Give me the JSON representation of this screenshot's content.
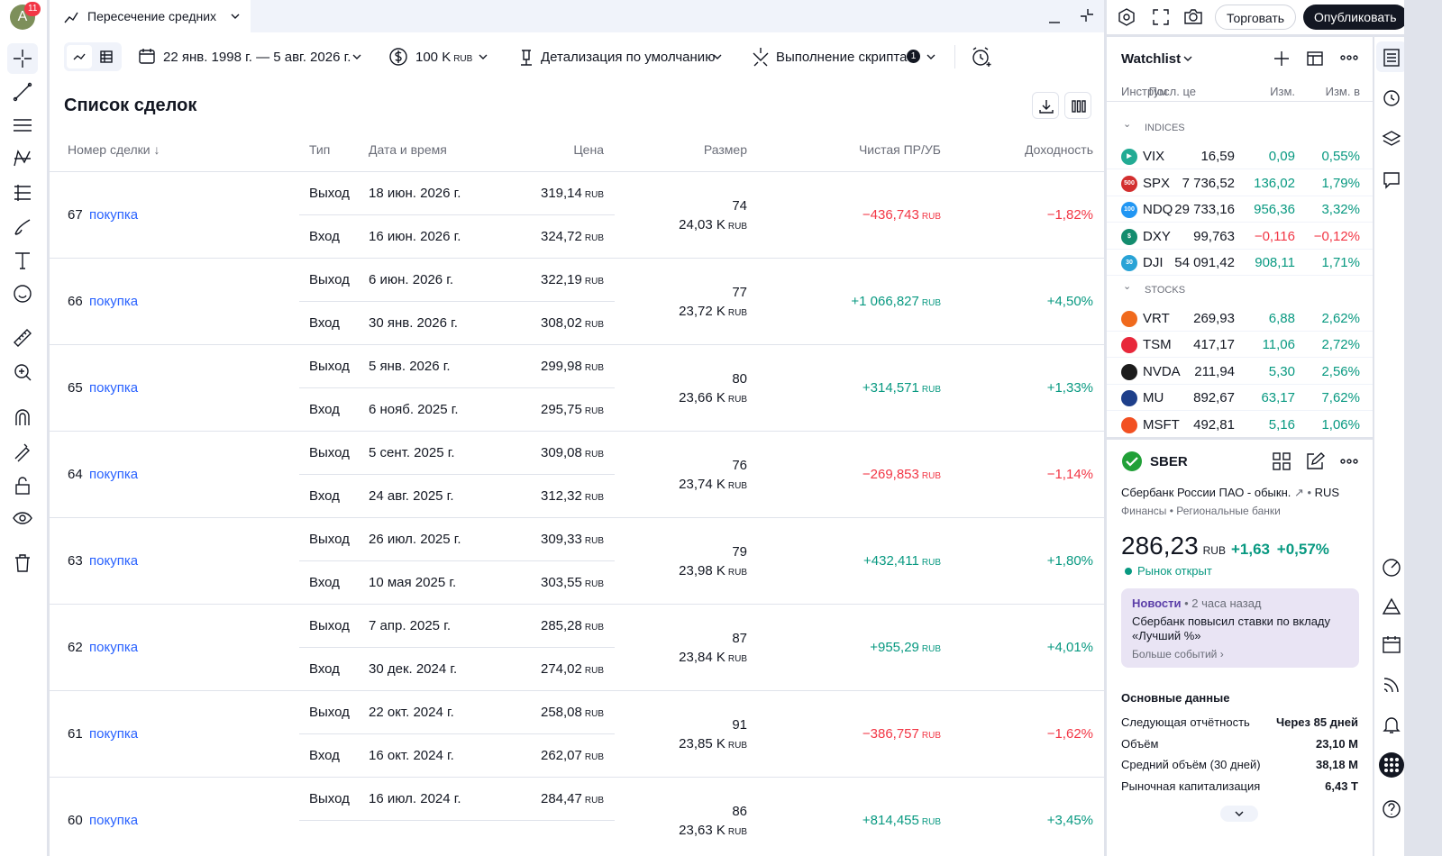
{
  "app": {
    "avatar": "A",
    "avatar_badge": "11",
    "tab_title": "Пересечение средних",
    "trade_button": "Торговать",
    "publish_button": "Опубликовать"
  },
  "toolbar": {
    "date_range": "22 янв. 1998 г. — 5 авг. 2026 г.",
    "capital": "100 K",
    "capital_currency": "RUB",
    "detail": "Детализация по умолчанию",
    "script": "Выполнение скрипта",
    "script_badge": "1"
  },
  "table": {
    "title": "Список сделок",
    "currency": "RUB",
    "columns": [
      "Номер сделки ↓",
      "Тип",
      "Дата и время",
      "Цена",
      "Размер",
      "Чистая ПР/УБ",
      "Доходность"
    ],
    "trades": [
      {
        "num": "67",
        "side": "покупка",
        "exit": {
          "type": "Выход",
          "date": "18 июн. 2026 г.",
          "price": "319,14"
        },
        "entry": {
          "type": "Вход",
          "date": "16 июн. 2026 г.",
          "price": "324,72"
        },
        "qty": "74",
        "size": "24,03 K",
        "pnl": "−436,743",
        "ret": "−1,82%"
      },
      {
        "num": "66",
        "side": "покупка",
        "exit": {
          "type": "Выход",
          "date": "6 июн. 2026 г.",
          "price": "322,19"
        },
        "entry": {
          "type": "Вход",
          "date": "30 янв. 2026 г.",
          "price": "308,02"
        },
        "qty": "77",
        "size": "23,72 K",
        "pnl": "+1 066,827",
        "ret": "+4,50%"
      },
      {
        "num": "65",
        "side": "покупка",
        "exit": {
          "type": "Выход",
          "date": "5 янв. 2026 г.",
          "price": "299,98"
        },
        "entry": {
          "type": "Вход",
          "date": "6 нояб. 2025 г.",
          "price": "295,75"
        },
        "qty": "80",
        "size": "23,66 K",
        "pnl": "+314,571",
        "ret": "+1,33%"
      },
      {
        "num": "64",
        "side": "покупка",
        "exit": {
          "type": "Выход",
          "date": "5 сент. 2025 г.",
          "price": "309,08"
        },
        "entry": {
          "type": "Вход",
          "date": "24 авг. 2025 г.",
          "price": "312,32"
        },
        "qty": "76",
        "size": "23,74 K",
        "pnl": "−269,853",
        "ret": "−1,14%"
      },
      {
        "num": "63",
        "side": "покупка",
        "exit": {
          "type": "Выход",
          "date": "26 июл. 2025 г.",
          "price": "309,33"
        },
        "entry": {
          "type": "Вход",
          "date": "10 мая 2025 г.",
          "price": "303,55"
        },
        "qty": "79",
        "size": "23,98 K",
        "pnl": "+432,411",
        "ret": "+1,80%"
      },
      {
        "num": "62",
        "side": "покупка",
        "exit": {
          "type": "Выход",
          "date": "7 апр. 2025 г.",
          "price": "285,28"
        },
        "entry": {
          "type": "Вход",
          "date": "30 дек. 2024 г.",
          "price": "274,02"
        },
        "qty": "87",
        "size": "23,84 K",
        "pnl": "+955,29",
        "ret": "+4,01%"
      },
      {
        "num": "61",
        "side": "покупка",
        "exit": {
          "type": "Выход",
          "date": "22 окт. 2024 г.",
          "price": "258,08"
        },
        "entry": {
          "type": "Вход",
          "date": "16 окт. 2024 г.",
          "price": "262,07"
        },
        "qty": "91",
        "size": "23,85 K",
        "pnl": "−386,757",
        "ret": "−1,62%"
      },
      {
        "num": "60",
        "side": "покупка",
        "exit": {
          "type": "Выход",
          "date": "16 июл. 2024 г.",
          "price": "284,47"
        },
        "qty": "86",
        "size": "23,63 K",
        "pnl": "+814,455",
        "ret": "+3,45%"
      }
    ]
  },
  "watchlist": {
    "title": "Watchlist",
    "columns": [
      "Инструм",
      "Посл. це",
      "Изм.",
      "Изм. в"
    ],
    "groups": [
      {
        "name": "INDICES",
        "rows": [
          {
            "symbol": "VIX",
            "badge": "▶",
            "color": "#22ab94",
            "last": "16,59",
            "chg": "0,09",
            "pct": "0,55%"
          },
          {
            "symbol": "SPX",
            "badge": "500",
            "color": "#d32f2f",
            "last": "7 736,52",
            "chg": "136,02",
            "pct": "1,79%"
          },
          {
            "symbol": "NDQ",
            "badge": "100",
            "color": "#2196f3",
            "last": "29 733,16",
            "chg": "956,36",
            "pct": "3,32%"
          },
          {
            "symbol": "DXY",
            "badge": "$",
            "color": "#138c6e",
            "last": "99,763",
            "chg": "−0,116",
            "pct": "−0,12%"
          },
          {
            "symbol": "DJI",
            "badge": "30",
            "color": "#29a3d6",
            "last": "54 091,42",
            "chg": "908,11",
            "pct": "1,71%"
          }
        ]
      },
      {
        "name": "STOCKS",
        "rows": [
          {
            "symbol": "VRT",
            "color": "#f06a1d",
            "last": "269,93",
            "chg": "6,88",
            "pct": "2,62%"
          },
          {
            "symbol": "TSM",
            "color": "#e8283b",
            "last": "417,17",
            "chg": "11,06",
            "pct": "2,72%"
          },
          {
            "symbol": "NVDA",
            "color": "#1c1c1c",
            "last": "211,94",
            "chg": "5,30",
            "pct": "2,56%"
          },
          {
            "symbol": "MU",
            "color": "#1e3f8a",
            "last": "892,67",
            "chg": "63,17",
            "pct": "7,62%"
          },
          {
            "symbol": "MSFT",
            "color": "#f25022",
            "last": "492,81",
            "chg": "5,16",
            "pct": "1,06%"
          }
        ]
      }
    ]
  },
  "details": {
    "symbol": "SBER",
    "name": "Сбербанк России ПАО - обыкн.",
    "exchange": "RUS",
    "sector": "Финансы",
    "industry": "Региональные банки",
    "price": "286,23",
    "currency": "RUB",
    "change": "+1,63",
    "change_pct": "+0,57%",
    "status": "Рынок открыт",
    "news": {
      "label": "Новости",
      "time": "2 часа назад",
      "text": "Сбербанк повысил ставки по вкладу «Лучший %»",
      "more": "Больше событий"
    },
    "key_title": "Основные данные",
    "key_stats": [
      {
        "label": "Следующая отчётность",
        "value": "Через 85 дней"
      },
      {
        "label": "Объём",
        "value": "23,10 M"
      },
      {
        "label": "Средний объём (30 дней)",
        "value": "38,18 M"
      },
      {
        "label": "Рыночная капитализация",
        "value": "6,43 T"
      }
    ]
  }
}
